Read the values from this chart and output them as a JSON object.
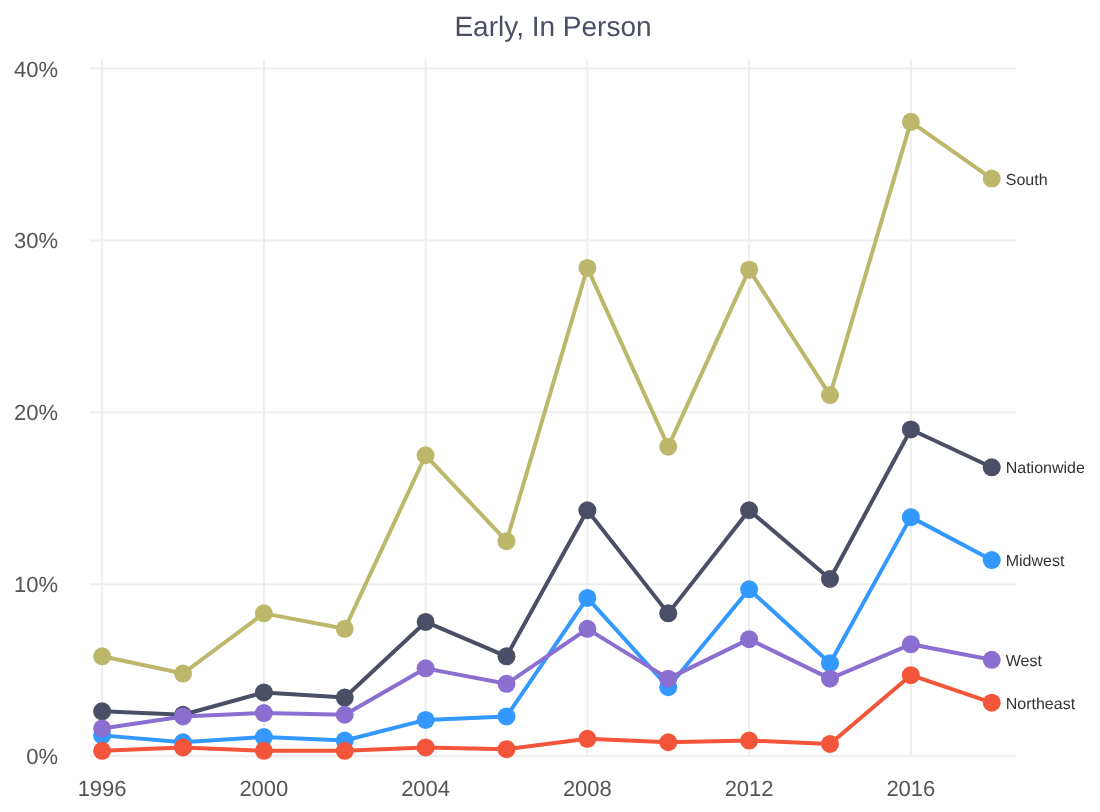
{
  "chart_data": {
    "type": "line",
    "title": "Early, In Person",
    "x": [
      1996,
      1998,
      2000,
      2002,
      2004,
      2006,
      2008,
      2010,
      2012,
      2014,
      2016,
      2018
    ],
    "series": [
      {
        "name": "South",
        "color": "#bdb76b",
        "values": [
          5.8,
          4.8,
          8.3,
          7.4,
          17.5,
          12.5,
          28.4,
          18.0,
          28.3,
          21.0,
          36.9,
          33.6
        ]
      },
      {
        "name": "Nationwide",
        "color": "#4a4f66",
        "values": [
          2.6,
          2.4,
          3.7,
          3.4,
          7.8,
          5.8,
          14.3,
          8.3,
          14.3,
          10.3,
          19.0,
          16.8
        ]
      },
      {
        "name": "Midwest",
        "color": "#3399ff",
        "values": [
          1.2,
          0.8,
          1.1,
          0.9,
          2.1,
          2.3,
          9.2,
          4.0,
          9.7,
          5.4,
          13.9,
          11.4
        ]
      },
      {
        "name": "West",
        "color": "#8a6fd1",
        "values": [
          1.6,
          2.3,
          2.5,
          2.4,
          5.1,
          4.2,
          7.4,
          4.5,
          6.8,
          4.5,
          6.5,
          5.6
        ]
      },
      {
        "name": "Northeast",
        "color": "#f2553a",
        "values": [
          0.3,
          0.5,
          0.3,
          0.3,
          0.5,
          0.4,
          1.0,
          0.8,
          0.9,
          0.7,
          4.7,
          3.1
        ]
      }
    ],
    "xlim": [
      1995.7,
      2018.6
    ],
    "xticks": [
      1996,
      2000,
      2004,
      2008,
      2012,
      2016
    ],
    "ylim": [
      0,
      40.5
    ],
    "yticks": [
      {
        "value": 0,
        "label": "0%"
      },
      {
        "value": 10,
        "label": "10%"
      },
      {
        "value": 20,
        "label": "20%"
      },
      {
        "value": 30,
        "label": "30%"
      },
      {
        "value": 40,
        "label": "40%"
      }
    ],
    "grid": true,
    "marker": "circle",
    "line_style": "solid",
    "legend": "right"
  }
}
